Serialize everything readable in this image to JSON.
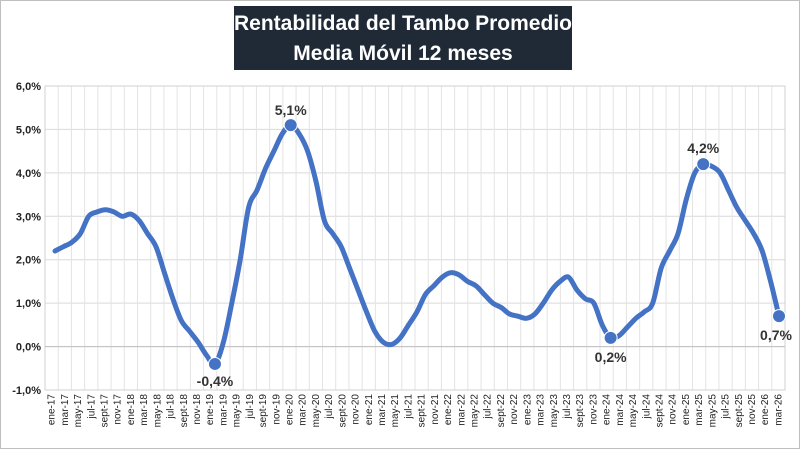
{
  "chart_data": {
    "type": "line",
    "title": "Rentabilidad  del Tambo Promedio",
    "subtitle": "Media Móvil 12 meses",
    "xlabel": "",
    "ylabel": "",
    "ylim": [
      -1.0,
      6.0
    ],
    "y_ticks": [
      "-1,0%",
      "0,0%",
      "1,0%",
      "2,0%",
      "3,0%",
      "4,0%",
      "5,0%",
      "6,0%"
    ],
    "grid": true,
    "legend": "none",
    "line_color": "#4472c4",
    "x_tick_labels": [
      "ene-17",
      "mar-17",
      "may-17",
      "jul-17",
      "sept-17",
      "nov-17",
      "ene-18",
      "mar-18",
      "may-18",
      "jul-18",
      "sept-18",
      "nov-18",
      "ene-19",
      "mar-19",
      "may-19",
      "jul-19",
      "sept-19",
      "nov-19",
      "ene-20",
      "mar-20",
      "may-20",
      "jul-20",
      "sept-20",
      "nov-20",
      "ene-21",
      "mar-21",
      "may-21",
      "jul-21",
      "sept-21",
      "nov-21",
      "ene-22",
      "mar-22",
      "may-22",
      "jul-22",
      "sept-22",
      "nov-22",
      "ene-23",
      "mar-23",
      "may-23",
      "jul-23",
      "sept-23",
      "nov-23",
      "ene-24",
      "mar-24",
      "may-24",
      "jul-24",
      "sept-24",
      "nov-24",
      "ene-25",
      "mar-25",
      "may-25",
      "jul-25",
      "sept-25",
      "nov-25",
      "ene-26",
      "mar-26"
    ],
    "series": [
      {
        "values": [
          2.2,
          2.3,
          2.4,
          2.6,
          3.0,
          3.1,
          3.15,
          3.1,
          3.0,
          3.05,
          2.9,
          2.6,
          2.3,
          1.7,
          1.1,
          0.6,
          0.35,
          0.1,
          -0.2,
          -0.4,
          0.1,
          1.0,
          2.0,
          3.2,
          3.6,
          4.1,
          4.5,
          4.9,
          5.1,
          4.9,
          4.5,
          3.8,
          2.9,
          2.6,
          2.3,
          1.8,
          1.3,
          0.8,
          0.35,
          0.1,
          0.05,
          0.2,
          0.5,
          0.8,
          1.2,
          1.4,
          1.6,
          1.7,
          1.65,
          1.5,
          1.4,
          1.2,
          1.0,
          0.9,
          0.75,
          0.7,
          0.65,
          0.75,
          1.0,
          1.3,
          1.5,
          1.6,
          1.3,
          1.1,
          1.0,
          0.5,
          0.2,
          0.25,
          0.45,
          0.65,
          0.8,
          1.0,
          1.8,
          2.2,
          2.6,
          3.4,
          4.0,
          4.2,
          4.15,
          4.0,
          3.6,
          3.2,
          2.9,
          2.6,
          2.2,
          1.5,
          0.7
        ]
      }
    ],
    "highlighted_points": [
      {
        "index": 19,
        "label": "-0,4%"
      },
      {
        "index": 28,
        "label": "5,1%"
      },
      {
        "index": 66,
        "label": "0,2%"
      },
      {
        "index": 77,
        "label": "4,2%"
      },
      {
        "index": 86,
        "label": "0,7%"
      }
    ]
  }
}
